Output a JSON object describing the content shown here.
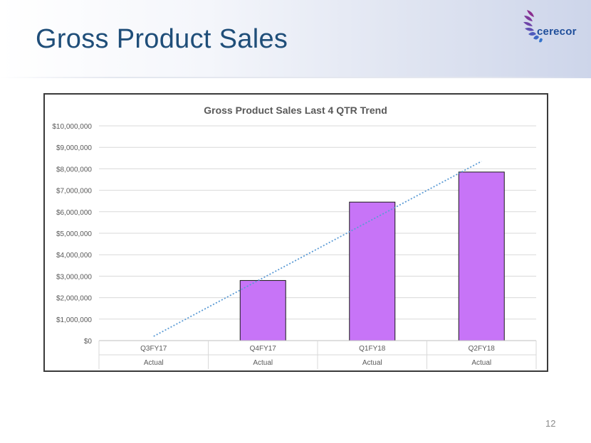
{
  "slide": {
    "title": "Gross Product Sales",
    "page_number": "12",
    "logo_text": "cerecor"
  },
  "colors": {
    "title": "#1f4e79",
    "bar_fill": "#c774f7",
    "bar_stroke": "#1a1a1a",
    "trendline": "#5b9bd5",
    "gridline": "#d9d9d9"
  },
  "chart_data": {
    "type": "bar",
    "title": "Gross Product Sales Last 4 QTR Trend",
    "categories": [
      "Q3FY17",
      "Q4FY17",
      "Q1FY18",
      "Q2FY18"
    ],
    "category_groups": [
      "Actual",
      "Actual",
      "Actual",
      "Actual"
    ],
    "values": [
      0,
      2800000,
      6450000,
      7850000
    ],
    "ylim": [
      0,
      10000000
    ],
    "yticks": [
      "$0",
      "$1,000,000",
      "$2,000,000",
      "$3,000,000",
      "$4,000,000",
      "$5,000,000",
      "$6,000,000",
      "$7,000,000",
      "$8,000,000",
      "$9,000,000",
      "$10,000,000"
    ],
    "trendline": {
      "style": "dotted",
      "type": "linear",
      "start": 200000,
      "end": 8350000
    },
    "grid": true,
    "legend": "none"
  }
}
